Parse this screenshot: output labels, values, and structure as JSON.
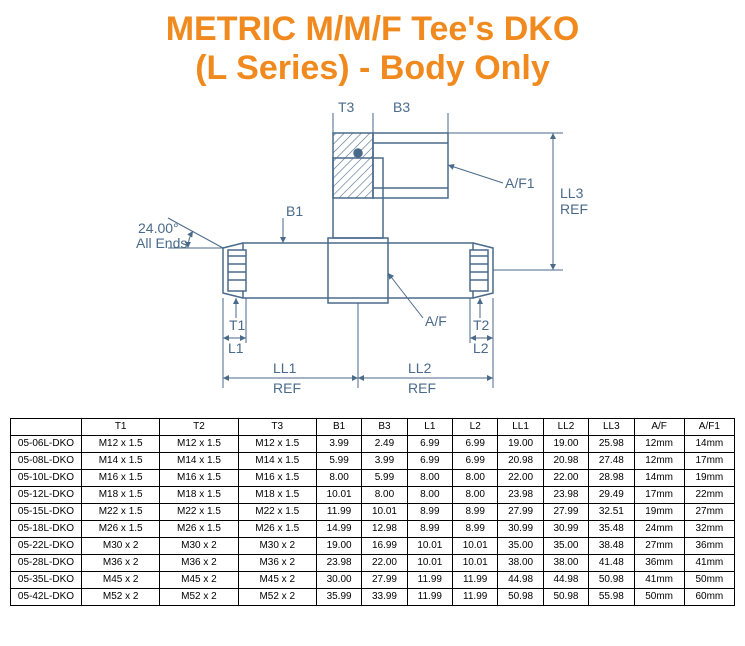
{
  "title_line1": "METRIC M/M/F Tee's DKO",
  "title_line2": "(L Series) - Body Only",
  "title_color": "#f08a1f",
  "title_fontsize": 34,
  "diagram": {
    "line_color": "#4a6a8a",
    "labels": {
      "T1": "T1",
      "T2": "T2",
      "T3": "T3",
      "B1": "B1",
      "B3": "B3",
      "L1": "L1",
      "L2": "L2",
      "AF": "A/F",
      "AF1": "A/F1",
      "LL1": "LL1",
      "LL2": "LL2",
      "LL3": "LL3",
      "REF": "REF",
      "angle": "24.00°",
      "all_ends": "All Ends"
    }
  },
  "table": {
    "columns": [
      "",
      "T1",
      "T2",
      "T3",
      "B1",
      "B3",
      "L1",
      "L2",
      "LL1",
      "LL2",
      "LL3",
      "A/F",
      "A/F1"
    ],
    "rows": [
      [
        "05-06L-DKO",
        "M12 x 1.5",
        "M12 x 1.5",
        "M12 x 1.5",
        "3.99",
        "2.49",
        "6.99",
        "6.99",
        "19.00",
        "19.00",
        "25.98",
        "12mm",
        "14mm"
      ],
      [
        "05-08L-DKO",
        "M14 x 1.5",
        "M14 x 1.5",
        "M14 x 1.5",
        "5.99",
        "3.99",
        "6.99",
        "6.99",
        "20.98",
        "20.98",
        "27.48",
        "12mm",
        "17mm"
      ],
      [
        "05-10L-DKO",
        "M16 x 1.5",
        "M16 x 1.5",
        "M16 x 1.5",
        "8.00",
        "5.99",
        "8.00",
        "8.00",
        "22.00",
        "22.00",
        "28.98",
        "14mm",
        "19mm"
      ],
      [
        "05-12L-DKO",
        "M18 x 1.5",
        "M18 x 1.5",
        "M18 x 1.5",
        "10.01",
        "8.00",
        "8.00",
        "8.00",
        "23.98",
        "23.98",
        "29.49",
        "17mm",
        "22mm"
      ],
      [
        "05-15L-DKO",
        "M22 x 1.5",
        "M22 x 1.5",
        "M22 x 1.5",
        "11.99",
        "10.01",
        "8.99",
        "8.99",
        "27.99",
        "27.99",
        "32.51",
        "19mm",
        "27mm"
      ],
      [
        "05-18L-DKO",
        "M26 x 1.5",
        "M26 x 1.5",
        "M26 x 1.5",
        "14.99",
        "12.98",
        "8.99",
        "8.99",
        "30.99",
        "30.99",
        "35.48",
        "24mm",
        "32mm"
      ],
      [
        "05-22L-DKO",
        "M30 x 2",
        "M30 x 2",
        "M30 x 2",
        "19.00",
        "16.99",
        "10.01",
        "10.01",
        "35.00",
        "35.00",
        "38.48",
        "27mm",
        "36mm"
      ],
      [
        "05-28L-DKO",
        "M36 x 2",
        "M36 x 2",
        "M36 x 2",
        "23.98",
        "22.00",
        "10.01",
        "10.01",
        "38.00",
        "38.00",
        "41.48",
        "36mm",
        "41mm"
      ],
      [
        "05-35L-DKO",
        "M45 x 2",
        "M45 x 2",
        "M45 x 2",
        "30.00",
        "27.99",
        "11.99",
        "11.99",
        "44.98",
        "44.98",
        "50.98",
        "41mm",
        "50mm"
      ],
      [
        "05-42L-DKO",
        "M52 x 2",
        "M52 x 2",
        "M52 x 2",
        "35.99",
        "33.99",
        "11.99",
        "11.99",
        "50.98",
        "50.98",
        "55.98",
        "50mm",
        "60mm"
      ]
    ]
  }
}
